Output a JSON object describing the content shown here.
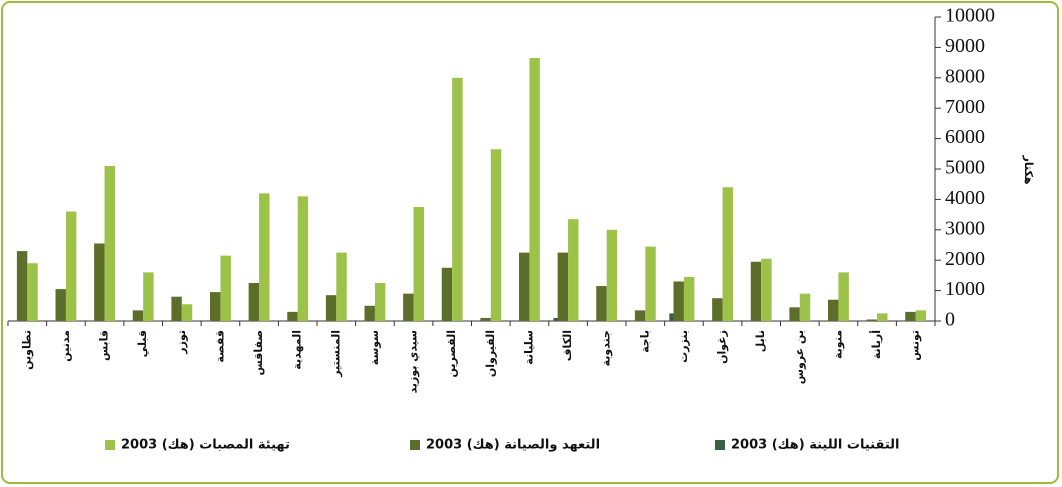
{
  "chart_data": {
    "type": "bar",
    "y_label": "هكتار",
    "categories": [
      "تطاوين",
      "مدنين",
      "قابس",
      "قبلي",
      "توزر",
      "قفصة",
      "صفاقس",
      "المهدية",
      "المنستير",
      "سوسة",
      "سيدي بوزيد",
      "القصرين",
      "القيروان",
      "سليانة",
      "الكاف",
      "جندوبة",
      "باجة",
      "بنزرت",
      "زغوان",
      "نابل",
      "بن عروس",
      "منوبة",
      "أريانة",
      "تونس"
    ],
    "series": [
      {
        "name": "التقنيات اللينة (هك) 2003",
        "color": "#3b5e45",
        "values": [
          0,
          0,
          0,
          0,
          0,
          0,
          0,
          0,
          0,
          0,
          0,
          0,
          0,
          0,
          100,
          0,
          0,
          250,
          0,
          0,
          0,
          0,
          0,
          0
        ]
      },
      {
        "name": "التعهد والصيانة (هك) 2003",
        "color": "#5d6e2b",
        "values": [
          2300,
          1050,
          2550,
          350,
          800,
          950,
          1250,
          300,
          850,
          500,
          900,
          1750,
          100,
          2250,
          2250,
          1150,
          350,
          1300,
          750,
          1950,
          450,
          700,
          50,
          300
        ]
      },
      {
        "name": "تهيئة المصبات (هك) 2003",
        "color": "#9dc24a",
        "values": [
          1900,
          3600,
          5100,
          1600,
          550,
          2150,
          4200,
          4100,
          2250,
          1250,
          3750,
          8000,
          5650,
          8650,
          3350,
          3000,
          2450,
          1450,
          4400,
          2050,
          900,
          1600,
          250,
          350
        ]
      }
    ],
    "ylim": [
      0,
      10000
    ],
    "yticks": [
      0,
      1000,
      2000,
      3000,
      4000,
      5000,
      6000,
      7000,
      8000,
      9000,
      10000
    ]
  }
}
